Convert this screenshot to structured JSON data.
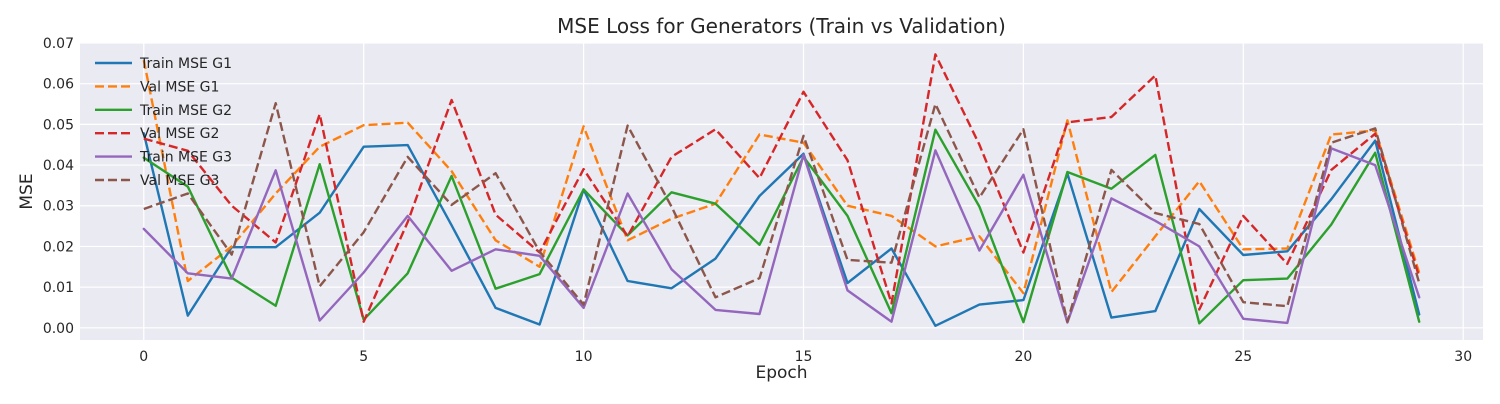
{
  "chart_data": {
    "type": "line",
    "title": "MSE Loss for Generators (Train vs Validation)",
    "xlabel": "Epoch",
    "ylabel": "MSE",
    "xlim": [
      -1.45,
      30.45
    ],
    "ylim": [
      -0.003,
      0.07
    ],
    "xticks": [
      0,
      5,
      10,
      15,
      20,
      25,
      30
    ],
    "yticks": [
      0.0,
      0.01,
      0.02,
      0.03,
      0.04,
      0.05,
      0.06,
      0.07
    ],
    "xtick_labels": [
      "0",
      "5",
      "10",
      "15",
      "20",
      "25",
      "30"
    ],
    "ytick_labels": [
      "0.00",
      "0.01",
      "0.02",
      "0.03",
      "0.04",
      "0.05",
      "0.06",
      "0.07"
    ],
    "grid": true,
    "legend_position": "top-left",
    "x": [
      0,
      1,
      2,
      3,
      4,
      5,
      6,
      7,
      8,
      9,
      10,
      11,
      12,
      13,
      14,
      15,
      16,
      17,
      18,
      19,
      20,
      21,
      22,
      23,
      24,
      25,
      26,
      27,
      28,
      29
    ],
    "series": [
      {
        "name": "Train MSE G1",
        "color": "#1f77b4",
        "dash": "solid",
        "values": [
          0.0478,
          0.003,
          0.0198,
          0.0198,
          0.0283,
          0.0445,
          0.0449,
          0.0252,
          0.0049,
          0.0008,
          0.034,
          0.0115,
          0.0097,
          0.017,
          0.0324,
          0.0428,
          0.011,
          0.0195,
          0.0005,
          0.0057,
          0.0068,
          0.0379,
          0.0025,
          0.0041,
          0.0292,
          0.0179,
          0.0188,
          0.0316,
          0.046,
          0.0033
        ]
      },
      {
        "name": "Val MSE G1",
        "color": "#ff7f0e",
        "dash": "dashed",
        "values": [
          0.0658,
          0.0115,
          0.02,
          0.033,
          0.0445,
          0.0498,
          0.0504,
          0.0385,
          0.0215,
          0.015,
          0.0495,
          0.0215,
          0.0268,
          0.0305,
          0.0475,
          0.0455,
          0.03,
          0.0275,
          0.02,
          0.0225,
          0.0085,
          0.051,
          0.0088,
          0.0225,
          0.036,
          0.0193,
          0.0195,
          0.0475,
          0.0485,
          0.0135
        ]
      },
      {
        "name": "Train MSE G2",
        "color": "#2ca02c",
        "dash": "solid",
        "values": [
          0.0418,
          0.0347,
          0.0123,
          0.0054,
          0.0402,
          0.002,
          0.0134,
          0.0373,
          0.0096,
          0.0132,
          0.034,
          0.0227,
          0.0333,
          0.0305,
          0.0204,
          0.042,
          0.0275,
          0.0036,
          0.0487,
          0.0298,
          0.0014,
          0.0383,
          0.0342,
          0.0425,
          0.0011,
          0.0117,
          0.0121,
          0.0254,
          0.043,
          0.0015
        ]
      },
      {
        "name": "Val MSE G2",
        "color": "#d62728",
        "dash": "dashed",
        "values": [
          0.0465,
          0.0435,
          0.03,
          0.021,
          0.0525,
          0.0015,
          0.026,
          0.056,
          0.0278,
          0.0185,
          0.039,
          0.0225,
          0.042,
          0.0488,
          0.0368,
          0.058,
          0.0412,
          0.006,
          0.0672,
          0.045,
          0.0185,
          0.0505,
          0.0518,
          0.062,
          0.0045,
          0.0275,
          0.0157,
          0.0388,
          0.0477,
          0.0125
        ]
      },
      {
        "name": "Train MSE G3",
        "color": "#9467bd",
        "dash": "solid",
        "values": [
          0.0243,
          0.0134,
          0.0121,
          0.0387,
          0.0018,
          0.0136,
          0.0275,
          0.014,
          0.0193,
          0.0177,
          0.0049,
          0.033,
          0.0144,
          0.0044,
          0.0034,
          0.0425,
          0.0092,
          0.0015,
          0.0436,
          0.019,
          0.0376,
          0.0013,
          0.0318,
          0.0263,
          0.02,
          0.0022,
          0.0012,
          0.0441,
          0.04,
          0.0075
        ]
      },
      {
        "name": "Val MSE G3",
        "color": "#8c564b",
        "dash": "dashed",
        "values": [
          0.0292,
          0.033,
          0.018,
          0.0552,
          0.0102,
          0.0235,
          0.042,
          0.0302,
          0.038,
          0.0187,
          0.0057,
          0.0497,
          0.0298,
          0.0075,
          0.0122,
          0.0472,
          0.0167,
          0.016,
          0.055,
          0.032,
          0.0488,
          0.0015,
          0.0388,
          0.0282,
          0.0255,
          0.0063,
          0.0053,
          0.0455,
          0.049,
          0.011
        ]
      }
    ]
  }
}
